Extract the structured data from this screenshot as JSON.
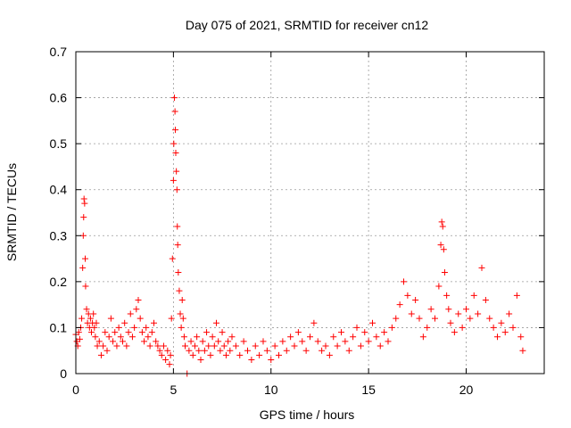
{
  "chart_data": {
    "type": "scatter",
    "title": "Day 075 of 2021, SRMTID for receiver cn12",
    "xlabel": "GPS time / hours",
    "ylabel": "SRMTID / TECUs",
    "xlim": [
      0,
      24
    ],
    "ylim": [
      0,
      0.7
    ],
    "xticks": [
      0,
      5,
      10,
      15,
      20
    ],
    "yticks": [
      0,
      0.1,
      0.2,
      0.3,
      0.4,
      0.5,
      0.6,
      0.7
    ],
    "ytick_labels": [
      "0",
      "0.1",
      "0.2",
      "0.3",
      "0.4",
      "0.5",
      "0.6",
      "0.7"
    ],
    "grid": true,
    "marker": "+",
    "color": "#ff0000",
    "series": [
      {
        "name": "cn12",
        "points": [
          [
            0.0,
            0.085
          ],
          [
            0.05,
            0.07
          ],
          [
            0.1,
            0.06
          ],
          [
            0.15,
            0.09
          ],
          [
            0.2,
            0.075
          ],
          [
            0.25,
            0.1
          ],
          [
            0.3,
            0.12
          ],
          [
            0.35,
            0.23
          ],
          [
            0.38,
            0.3
          ],
          [
            0.4,
            0.34
          ],
          [
            0.42,
            0.38
          ],
          [
            0.45,
            0.37
          ],
          [
            0.48,
            0.25
          ],
          [
            0.5,
            0.19
          ],
          [
            0.55,
            0.14
          ],
          [
            0.6,
            0.11
          ],
          [
            0.65,
            0.13
          ],
          [
            0.7,
            0.1
          ],
          [
            0.75,
            0.12
          ],
          [
            0.8,
            0.09
          ],
          [
            0.85,
            0.11
          ],
          [
            0.9,
            0.13
          ],
          [
            0.95,
            0.1
          ],
          [
            1.0,
            0.08
          ],
          [
            1.05,
            0.11
          ],
          [
            1.1,
            0.06
          ],
          [
            1.2,
            0.07
          ],
          [
            1.3,
            0.04
          ],
          [
            1.4,
            0.06
          ],
          [
            1.5,
            0.09
          ],
          [
            1.6,
            0.05
          ],
          [
            1.7,
            0.08
          ],
          [
            1.8,
            0.12
          ],
          [
            1.9,
            0.07
          ],
          [
            2.0,
            0.09
          ],
          [
            2.1,
            0.06
          ],
          [
            2.2,
            0.1
          ],
          [
            2.3,
            0.08
          ],
          [
            2.4,
            0.07
          ],
          [
            2.5,
            0.11
          ],
          [
            2.6,
            0.06
          ],
          [
            2.7,
            0.09
          ],
          [
            2.8,
            0.13
          ],
          [
            2.9,
            0.08
          ],
          [
            3.0,
            0.1
          ],
          [
            3.1,
            0.14
          ],
          [
            3.2,
            0.16
          ],
          [
            3.3,
            0.12
          ],
          [
            3.4,
            0.09
          ],
          [
            3.5,
            0.07
          ],
          [
            3.6,
            0.1
          ],
          [
            3.7,
            0.08
          ],
          [
            3.8,
            0.06
          ],
          [
            3.9,
            0.09
          ],
          [
            4.0,
            0.11
          ],
          [
            4.1,
            0.07
          ],
          [
            4.2,
            0.06
          ],
          [
            4.3,
            0.05
          ],
          [
            4.4,
            0.04
          ],
          [
            4.5,
            0.06
          ],
          [
            4.6,
            0.03
          ],
          [
            4.7,
            0.05
          ],
          [
            4.8,
            0.02
          ],
          [
            4.85,
            0.04
          ],
          [
            4.9,
            0.12
          ],
          [
            4.95,
            0.25
          ],
          [
            5.0,
            0.42
          ],
          [
            5.02,
            0.5
          ],
          [
            5.05,
            0.6
          ],
          [
            5.08,
            0.57
          ],
          [
            5.1,
            0.53
          ],
          [
            5.12,
            0.48
          ],
          [
            5.15,
            0.44
          ],
          [
            5.18,
            0.4
          ],
          [
            5.2,
            0.32
          ],
          [
            5.22,
            0.28
          ],
          [
            5.25,
            0.22
          ],
          [
            5.3,
            0.18
          ],
          [
            5.35,
            0.13
          ],
          [
            5.4,
            0.1
          ],
          [
            5.45,
            0.16
          ],
          [
            5.5,
            0.12
          ],
          [
            5.55,
            0.08
          ],
          [
            5.6,
            0.06
          ],
          [
            5.7,
            0.0
          ],
          [
            5.8,
            0.05
          ],
          [
            5.9,
            0.07
          ],
          [
            6.0,
            0.04
          ],
          [
            6.1,
            0.06
          ],
          [
            6.2,
            0.08
          ],
          [
            6.3,
            0.05
          ],
          [
            6.4,
            0.03
          ],
          [
            6.5,
            0.07
          ],
          [
            6.6,
            0.05
          ],
          [
            6.7,
            0.09
          ],
          [
            6.8,
            0.06
          ],
          [
            6.9,
            0.04
          ],
          [
            7.0,
            0.08
          ],
          [
            7.1,
            0.06
          ],
          [
            7.2,
            0.11
          ],
          [
            7.3,
            0.07
          ],
          [
            7.4,
            0.05
          ],
          [
            7.5,
            0.09
          ],
          [
            7.6,
            0.06
          ],
          [
            7.7,
            0.04
          ],
          [
            7.8,
            0.07
          ],
          [
            7.9,
            0.05
          ],
          [
            8.0,
            0.08
          ],
          [
            8.2,
            0.06
          ],
          [
            8.4,
            0.04
          ],
          [
            8.6,
            0.07
          ],
          [
            8.8,
            0.05
          ],
          [
            9.0,
            0.03
          ],
          [
            9.2,
            0.06
          ],
          [
            9.4,
            0.04
          ],
          [
            9.6,
            0.07
          ],
          [
            9.8,
            0.05
          ],
          [
            10.0,
            0.03
          ],
          [
            10.2,
            0.06
          ],
          [
            10.4,
            0.04
          ],
          [
            10.6,
            0.07
          ],
          [
            10.8,
            0.05
          ],
          [
            11.0,
            0.08
          ],
          [
            11.2,
            0.06
          ],
          [
            11.4,
            0.09
          ],
          [
            11.6,
            0.07
          ],
          [
            11.8,
            0.05
          ],
          [
            12.0,
            0.08
          ],
          [
            12.2,
            0.11
          ],
          [
            12.4,
            0.07
          ],
          [
            12.6,
            0.05
          ],
          [
            12.8,
            0.06
          ],
          [
            13.0,
            0.04
          ],
          [
            13.2,
            0.08
          ],
          [
            13.4,
            0.06
          ],
          [
            13.6,
            0.09
          ],
          [
            13.8,
            0.07
          ],
          [
            14.0,
            0.05
          ],
          [
            14.2,
            0.08
          ],
          [
            14.4,
            0.1
          ],
          [
            14.6,
            0.06
          ],
          [
            14.8,
            0.09
          ],
          [
            15.0,
            0.07
          ],
          [
            15.2,
            0.11
          ],
          [
            15.4,
            0.08
          ],
          [
            15.6,
            0.06
          ],
          [
            15.8,
            0.09
          ],
          [
            16.0,
            0.07
          ],
          [
            16.2,
            0.1
          ],
          [
            16.4,
            0.12
          ],
          [
            16.6,
            0.15
          ],
          [
            16.8,
            0.2
          ],
          [
            17.0,
            0.17
          ],
          [
            17.2,
            0.13
          ],
          [
            17.4,
            0.16
          ],
          [
            17.6,
            0.12
          ],
          [
            17.8,
            0.08
          ],
          [
            18.0,
            0.1
          ],
          [
            18.2,
            0.14
          ],
          [
            18.4,
            0.12
          ],
          [
            18.6,
            0.19
          ],
          [
            18.7,
            0.28
          ],
          [
            18.75,
            0.33
          ],
          [
            18.8,
            0.32
          ],
          [
            18.85,
            0.27
          ],
          [
            18.9,
            0.22
          ],
          [
            19.0,
            0.17
          ],
          [
            19.1,
            0.14
          ],
          [
            19.2,
            0.11
          ],
          [
            19.4,
            0.09
          ],
          [
            19.6,
            0.13
          ],
          [
            19.8,
            0.1
          ],
          [
            20.0,
            0.14
          ],
          [
            20.2,
            0.12
          ],
          [
            20.4,
            0.17
          ],
          [
            20.6,
            0.13
          ],
          [
            20.8,
            0.23
          ],
          [
            21.0,
            0.16
          ],
          [
            21.2,
            0.12
          ],
          [
            21.4,
            0.1
          ],
          [
            21.6,
            0.08
          ],
          [
            21.8,
            0.11
          ],
          [
            22.0,
            0.09
          ],
          [
            22.2,
            0.13
          ],
          [
            22.4,
            0.1
          ],
          [
            22.6,
            0.17
          ],
          [
            22.8,
            0.08
          ],
          [
            22.9,
            0.05
          ]
        ]
      }
    ]
  }
}
